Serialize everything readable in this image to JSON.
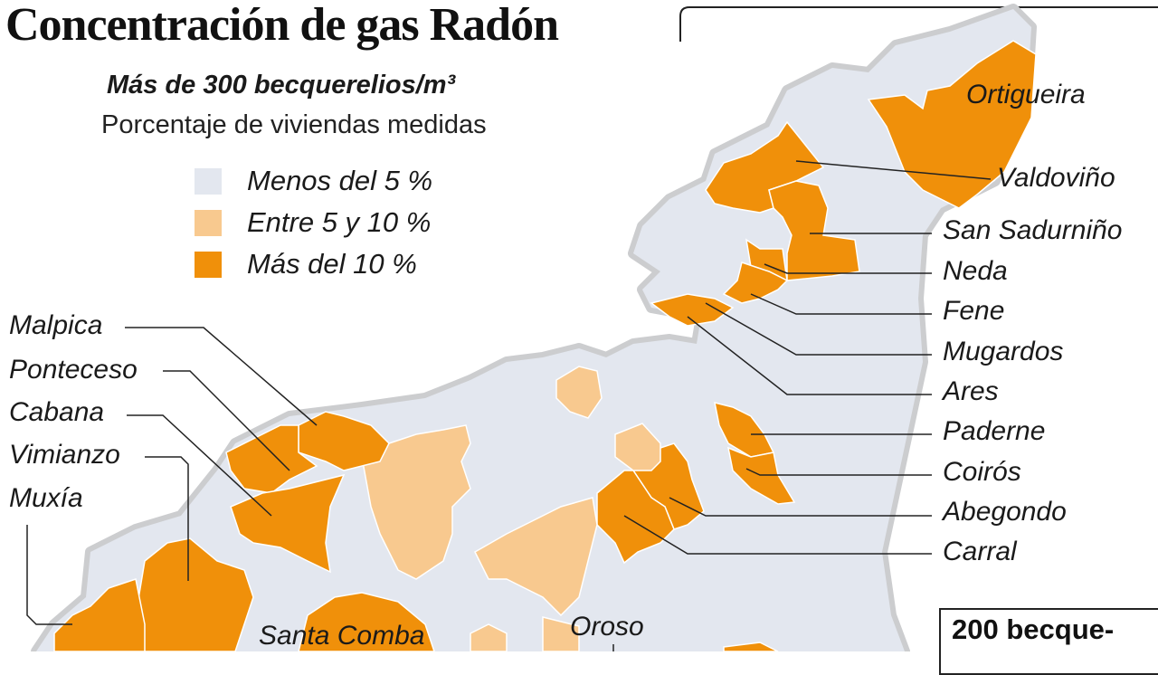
{
  "title": "Concentración de gas Radón",
  "subtitle": "Más de 300 becquerelios/m³",
  "subtitle2": "Porcentaje de viviendas medidas",
  "colors": {
    "low": "#e3e7ef",
    "mid": "#f8c98f",
    "high": "#f0900a",
    "outline": "#cccdcf"
  },
  "legend": [
    {
      "label": "Menos del 5 %",
      "category": "low"
    },
    {
      "label": "Entre 5 y 10 %",
      "category": "mid"
    },
    {
      "label": "Más del 10 %",
      "category": "high"
    }
  ],
  "municipalities": {
    "ortigueira": {
      "name": "Ortigueira",
      "category": "high"
    },
    "valdovino": {
      "name": "Valdoviño",
      "category": "high"
    },
    "san_sadurnino": {
      "name": "San Sadurniño",
      "category": "high"
    },
    "neda": {
      "name": "Neda",
      "category": "high"
    },
    "fene": {
      "name": "Fene",
      "category": "high"
    },
    "mugardos": {
      "name": "Mugardos",
      "category": "high"
    },
    "ares": {
      "name": "Ares",
      "category": "high"
    },
    "paderne": {
      "name": "Paderne",
      "category": "high"
    },
    "coiros": {
      "name": "Coirós",
      "category": "high"
    },
    "abegondo": {
      "name": "Abegondo",
      "category": "high"
    },
    "carral": {
      "name": "Carral",
      "category": "high"
    },
    "malpica": {
      "name": "Malpica",
      "category": "high"
    },
    "ponteceso": {
      "name": "Ponteceso",
      "category": "high"
    },
    "cabana": {
      "name": "Cabana",
      "category": "high"
    },
    "vimianzo": {
      "name": "Vimianzo",
      "category": "high"
    },
    "muxia": {
      "name": "Muxía",
      "category": "high"
    },
    "santa_comba": {
      "name": "Santa Comba",
      "category": "high"
    },
    "oroso": {
      "name": "Oroso",
      "category": "mid"
    }
  },
  "info_box": "200 becque-"
}
